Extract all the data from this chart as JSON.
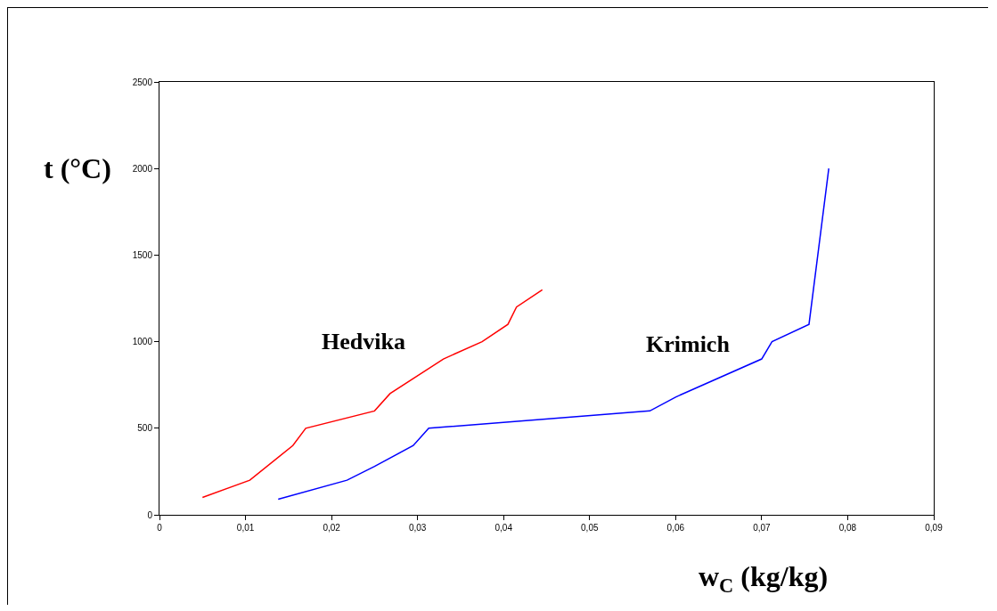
{
  "chart_data": {
    "type": "line",
    "xlabel": "w$_{C}$ (kg/kg)",
    "ylabel": "t (°C)",
    "xlim": [
      0,
      0.09
    ],
    "ylim": [
      0,
      2500
    ],
    "xticks": [
      0,
      {
        "value": 0.01,
        "label": "0,01"
      },
      {
        "value": 0.02,
        "label": "0,02"
      },
      {
        "value": 0.03,
        "label": "0,03"
      },
      {
        "value": 0.04,
        "label": "0,04"
      },
      {
        "value": 0.05,
        "label": "0,05"
      },
      {
        "value": 0.06,
        "label": "0,06"
      },
      {
        "value": 0.07,
        "label": "0,07"
      },
      {
        "value": 0.08,
        "label": "0,08"
      },
      {
        "value": 0.09,
        "label": "0,09"
      }
    ],
    "yticks": [
      0,
      500,
      1000,
      1500,
      2000,
      2500
    ],
    "grid": false,
    "legend": false,
    "marker": "none",
    "line_style": "solid",
    "series": [
      {
        "name": "Hedvika",
        "color": "#ff0000",
        "x": [
          0.005,
          0.0105,
          0.0155,
          0.017,
          0.025,
          0.0268,
          0.033,
          0.0375,
          0.0405,
          0.0415,
          0.0445
        ],
        "values": [
          100,
          200,
          400,
          500,
          600,
          700,
          900,
          1000,
          1100,
          1200,
          1300
        ]
      },
      {
        "name": "Krimich",
        "color": "#0000ff",
        "x": [
          0.0138,
          0.0218,
          0.025,
          0.0295,
          0.0313,
          0.057,
          0.06,
          0.07,
          0.0712,
          0.0755,
          0.0778
        ],
        "values": [
          90,
          200,
          280,
          400,
          500,
          600,
          680,
          900,
          1000,
          1100,
          2000
        ]
      }
    ]
  }
}
